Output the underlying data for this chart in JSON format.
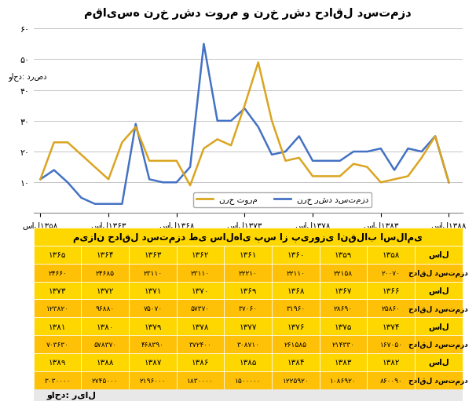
{
  "title": "مقایسه نرخ رشد تورم و نرخ رشد حداقل دستمزد",
  "ylabel": "واحد: درصد",
  "years": [
    1358,
    1359,
    1360,
    1361,
    1362,
    1363,
    1364,
    1365,
    1366,
    1367,
    1368,
    1369,
    1370,
    1371,
    1372,
    1373,
    1374,
    1375,
    1376,
    1377,
    1378,
    1379,
    1380,
    1381,
    1382,
    1383,
    1384,
    1385,
    1386,
    1387,
    1388
  ],
  "inflation": [
    11,
    23,
    23,
    19,
    15,
    11,
    23,
    28,
    17,
    17,
    17,
    9,
    21,
    24,
    22,
    35,
    49,
    30,
    17,
    18,
    12,
    12,
    12,
    16,
    15,
    10,
    11,
    12,
    18,
    25,
    10
  ],
  "wage_growth": [
    11,
    14,
    10,
    5,
    3,
    3,
    3,
    29,
    11,
    10,
    10,
    15,
    55,
    30,
    30,
    34,
    28,
    19,
    20,
    25,
    17,
    17,
    17,
    20,
    20,
    21,
    14,
    21,
    20,
    25,
    10
  ],
  "inflation_color": "#DAA520",
  "wage_color": "#4472C4",
  "table_header": "میزان حداقل دستمزد طی سالهای پس از پیروزی انقلاب اسلامی",
  "footer": "واحد: ریال",
  "legend_inflation": "نرخ تورم",
  "legend_wage": "نرخ رشد دستمزد",
  "xtick_years": [
    1358,
    1363,
    1368,
    1373,
    1378,
    1383,
    1388
  ],
  "xtick_labels": [
    "سال۱۳۵۸",
    "سال۱۳۶۳",
    "سال۱۳۶۸",
    "سال۱۳۷۳",
    "سال۱۳۷۸",
    "سال۱۳۸۳",
    "سال۱۳۸۸"
  ],
  "ytick_labels": [
    "۱۰",
    "۲۰",
    "۳۰",
    "۴۰",
    "۵۰",
    "۶۰"
  ],
  "table_rows": [
    {
      "year_label": "سال",
      "wage_label": "حداقل دستمزد",
      "years": [
        "۱۳۵۸",
        "۱۳۵۹",
        "۱۳۶۰",
        "۱۳۶۱",
        "۱۳۶۲",
        "۱۳۶۳",
        "۱۳۶۴",
        "۱۳۶۵"
      ],
      "wages": [
        "۲۰۰۷۰",
        "۲۲۱۵۸",
        "۲۲۱۱۰",
        "۲۲۲۱۰",
        "۲۳۱۱۰",
        "۲۳۱۱۰",
        "۲۴۶۸۵",
        "۲۴۶۶۰"
      ]
    },
    {
      "year_label": "سال",
      "wage_label": "حداقل دستمزد",
      "years": [
        "۱۳۶۶",
        "۱۳۶۷",
        "۱۳۶۸",
        "۱۳۶۹",
        "۱۳۷۰",
        "۱۳۷۱",
        "۱۳۷۲",
        "۱۳۷۳"
      ],
      "wages": [
        "۲۵۸۶۰",
        "۲۸۶۹۰",
        "۳۱۹۶۰",
        "۳۷۰۶۰",
        "۵۷۳۷۰",
        "۷۵۰۷۰",
        "۹۶۸۸۰",
        "۱۲۳۸۲۰"
      ]
    },
    {
      "year_label": "سال",
      "wage_label": "حداقل دستمزد",
      "years": [
        "۱۳۷۴",
        "۱۳۷۵",
        "۱۳۷۶",
        "۱۳۷۷",
        "۱۳۷۸",
        "۱۳۷۹",
        "۱۳۸۰",
        "۱۳۸۱"
      ],
      "wages": [
        "۱۶۷۰۵۰",
        "۲۱۴۳۳۰",
        "۲۶۱۵۸۵",
        "۳۰۸۷۱۰",
        "۳۷۲۴۰۰",
        "۴۶۸۳۹۰",
        "۵۷۸۳۷۰",
        "۷۰۳۶۳۰"
      ]
    },
    {
      "year_label": "سال",
      "wage_label": "حداقل دستمزد",
      "years": [
        "۱۳۸۲",
        "۱۳۸۳",
        "۱۳۸۴",
        "۱۳۸۵",
        "۱۳۸۶",
        "۱۳۸۷",
        "۱۳۸۸",
        "۱۳۸۹"
      ],
      "wages": [
        "۸۶۰۰۹۰",
        "۱۰۸۶۹۲۰",
        "۱۲۲۵۹۲۰",
        "۱۵۰۰۰۰۰",
        "۱۸۳۰۰۰۰",
        "۲۱۹۶۰۰۰",
        "۲۷۴۵۰۰۰",
        "۳۰۳۰۰۰۰"
      ]
    }
  ]
}
